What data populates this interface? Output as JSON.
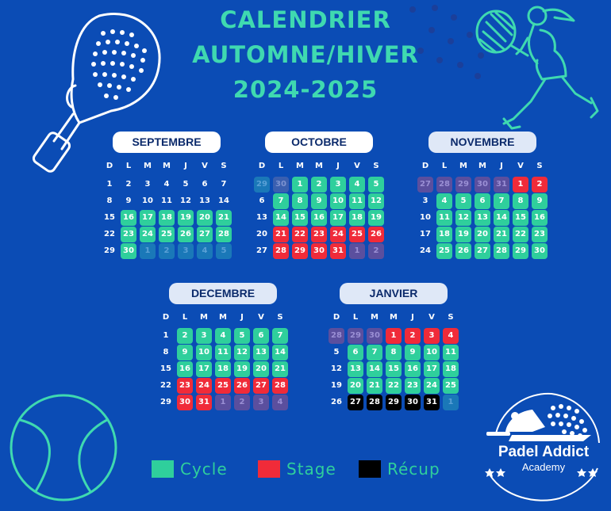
{
  "title": {
    "line1": "CALENDRIER",
    "line2": "AUTOMNE/HIVER",
    "line3": "2024-2025"
  },
  "weekdays": [
    "D",
    "L",
    "M",
    "M",
    "J",
    "V",
    "S"
  ],
  "months": [
    {
      "id": "septembre",
      "label": "SEPTEMBRE",
      "weeks": [
        [
          [
            "1",
            ""
          ],
          [
            "2",
            ""
          ],
          [
            "3",
            ""
          ],
          [
            "4",
            ""
          ],
          [
            "5",
            ""
          ],
          [
            "6",
            ""
          ],
          [
            "7",
            ""
          ]
        ],
        [
          [
            "8",
            ""
          ],
          [
            "9",
            ""
          ],
          [
            "10",
            ""
          ],
          [
            "11",
            ""
          ],
          [
            "12",
            ""
          ],
          [
            "13",
            ""
          ],
          [
            "14",
            ""
          ]
        ],
        [
          [
            "15",
            ""
          ],
          [
            "16",
            "cycle"
          ],
          [
            "17",
            "cycle"
          ],
          [
            "18",
            "cycle"
          ],
          [
            "19",
            "cycle"
          ],
          [
            "20",
            "cycle"
          ],
          [
            "21",
            "cycle"
          ]
        ],
        [
          [
            "22",
            ""
          ],
          [
            "23",
            "cycle"
          ],
          [
            "24",
            "cycle"
          ],
          [
            "25",
            "cycle"
          ],
          [
            "26",
            "cycle"
          ],
          [
            "27",
            "cycle"
          ],
          [
            "28",
            "cycle"
          ]
        ],
        [
          [
            "29",
            ""
          ],
          [
            "30",
            "cycle"
          ],
          [
            "1",
            "faded-c"
          ],
          [
            "2",
            "faded-c"
          ],
          [
            "3",
            "faded-c"
          ],
          [
            "4",
            "faded-c"
          ],
          [
            "5",
            "faded-c"
          ]
        ]
      ]
    },
    {
      "id": "octobre",
      "label": "OCTOBRE",
      "weeks": [
        [
          [
            "29",
            "faded-c"
          ],
          [
            "30",
            "faded-o"
          ],
          [
            "1",
            "cycle"
          ],
          [
            "2",
            "cycle"
          ],
          [
            "3",
            "cycle"
          ],
          [
            "4",
            "cycle"
          ],
          [
            "5",
            "cycle"
          ]
        ],
        [
          [
            "6",
            ""
          ],
          [
            "7",
            "cycle"
          ],
          [
            "8",
            "cycle"
          ],
          [
            "9",
            "cycle"
          ],
          [
            "10",
            "cycle"
          ],
          [
            "11",
            "cycle"
          ],
          [
            "12",
            "cycle"
          ]
        ],
        [
          [
            "13",
            ""
          ],
          [
            "14",
            "cycle"
          ],
          [
            "15",
            "cycle"
          ],
          [
            "16",
            "cycle"
          ],
          [
            "17",
            "cycle"
          ],
          [
            "18",
            "cycle"
          ],
          [
            "19",
            "cycle"
          ]
        ],
        [
          [
            "20",
            ""
          ],
          [
            "21",
            "stage"
          ],
          [
            "22",
            "stage"
          ],
          [
            "23",
            "stage"
          ],
          [
            "24",
            "stage"
          ],
          [
            "25",
            "stage"
          ],
          [
            "26",
            "stage"
          ]
        ],
        [
          [
            "27",
            ""
          ],
          [
            "28",
            "stage"
          ],
          [
            "29",
            "stage"
          ],
          [
            "30",
            "stage"
          ],
          [
            "31",
            "stage"
          ],
          [
            "1",
            "faded-p"
          ],
          [
            "2",
            "faded-p"
          ]
        ]
      ]
    },
    {
      "id": "novembre",
      "label": "NOVEMBRE",
      "weeks": [
        [
          [
            "27",
            "faded-p"
          ],
          [
            "28",
            "faded-p"
          ],
          [
            "29",
            "faded-p"
          ],
          [
            "30",
            "faded-p"
          ],
          [
            "31",
            "faded-p"
          ],
          [
            "1",
            "stage"
          ],
          [
            "2",
            "stage"
          ]
        ],
        [
          [
            "3",
            ""
          ],
          [
            "4",
            "cycle"
          ],
          [
            "5",
            "cycle"
          ],
          [
            "6",
            "cycle"
          ],
          [
            "7",
            "cycle"
          ],
          [
            "8",
            "cycle"
          ],
          [
            "9",
            "cycle"
          ]
        ],
        [
          [
            "10",
            ""
          ],
          [
            "11",
            "cycle"
          ],
          [
            "12",
            "cycle"
          ],
          [
            "13",
            "cycle"
          ],
          [
            "14",
            "cycle"
          ],
          [
            "15",
            "cycle"
          ],
          [
            "16",
            "cycle"
          ]
        ],
        [
          [
            "17",
            ""
          ],
          [
            "18",
            "cycle"
          ],
          [
            "19",
            "cycle"
          ],
          [
            "20",
            "cycle"
          ],
          [
            "21",
            "cycle"
          ],
          [
            "22",
            "cycle"
          ],
          [
            "23",
            "cycle"
          ]
        ],
        [
          [
            "24",
            ""
          ],
          [
            "25",
            "cycle"
          ],
          [
            "26",
            "cycle"
          ],
          [
            "27",
            "cycle"
          ],
          [
            "28",
            "cycle"
          ],
          [
            "29",
            "cycle"
          ],
          [
            "30",
            "cycle"
          ]
        ]
      ]
    },
    {
      "id": "decembre",
      "label": "DECEMBRE",
      "weeks": [
        [
          [
            "1",
            ""
          ],
          [
            "2",
            "cycle"
          ],
          [
            "3",
            "cycle"
          ],
          [
            "4",
            "cycle"
          ],
          [
            "5",
            "cycle"
          ],
          [
            "6",
            "cycle"
          ],
          [
            "7",
            "cycle"
          ]
        ],
        [
          [
            "8",
            ""
          ],
          [
            "9",
            "cycle"
          ],
          [
            "10",
            "cycle"
          ],
          [
            "11",
            "cycle"
          ],
          [
            "12",
            "cycle"
          ],
          [
            "13",
            "cycle"
          ],
          [
            "14",
            "cycle"
          ]
        ],
        [
          [
            "15",
            ""
          ],
          [
            "16",
            "cycle"
          ],
          [
            "17",
            "cycle"
          ],
          [
            "18",
            "cycle"
          ],
          [
            "19",
            "cycle"
          ],
          [
            "20",
            "cycle"
          ],
          [
            "21",
            "cycle"
          ]
        ],
        [
          [
            "22",
            ""
          ],
          [
            "23",
            "stage"
          ],
          [
            "24",
            "stage"
          ],
          [
            "25",
            "stage"
          ],
          [
            "26",
            "stage"
          ],
          [
            "27",
            "stage"
          ],
          [
            "28",
            "stage"
          ]
        ],
        [
          [
            "29",
            ""
          ],
          [
            "30",
            "stage"
          ],
          [
            "31",
            "stage"
          ],
          [
            "1",
            "faded-p"
          ],
          [
            "2",
            "faded-p"
          ],
          [
            "3",
            "faded-p"
          ],
          [
            "4",
            "faded-p"
          ]
        ]
      ]
    },
    {
      "id": "janvier",
      "label": "JANVIER",
      "weeks": [
        [
          [
            "28",
            "faded-p"
          ],
          [
            "29",
            "faded-p"
          ],
          [
            "30",
            "faded-p"
          ],
          [
            "1",
            "stage"
          ],
          [
            "2",
            "stage"
          ],
          [
            "3",
            "stage"
          ],
          [
            "4",
            "stage"
          ]
        ],
        [
          [
            "5",
            ""
          ],
          [
            "6",
            "cycle"
          ],
          [
            "7",
            "cycle"
          ],
          [
            "8",
            "cycle"
          ],
          [
            "9",
            "cycle"
          ],
          [
            "10",
            "cycle"
          ],
          [
            "11",
            "cycle"
          ]
        ],
        [
          [
            "12",
            ""
          ],
          [
            "13",
            "cycle"
          ],
          [
            "14",
            "cycle"
          ],
          [
            "15",
            "cycle"
          ],
          [
            "16",
            "cycle"
          ],
          [
            "17",
            "cycle"
          ],
          [
            "18",
            "cycle"
          ]
        ],
        [
          [
            "19",
            ""
          ],
          [
            "20",
            "cycle"
          ],
          [
            "21",
            "cycle"
          ],
          [
            "22",
            "cycle"
          ],
          [
            "23",
            "cycle"
          ],
          [
            "24",
            "cycle"
          ],
          [
            "25",
            "cycle"
          ]
        ],
        [
          [
            "26",
            ""
          ],
          [
            "27",
            "recup"
          ],
          [
            "28",
            "recup"
          ],
          [
            "29",
            "recup"
          ],
          [
            "30",
            "recup"
          ],
          [
            "31",
            "recup"
          ],
          [
            "1",
            "faded-c"
          ]
        ]
      ]
    }
  ],
  "legend": [
    {
      "label": "Cycle",
      "color": "#2fcf9c"
    },
    {
      "label": "Stage",
      "color": "#f02b39"
    },
    {
      "label": "Récup",
      "color": "#000000"
    }
  ],
  "logo": {
    "name": "Padel Addict",
    "sub": "Academy"
  },
  "colors": {
    "background": "#0b4cb5",
    "accent": "#3fd9b0",
    "cycle": "#2fcf9c",
    "stage": "#f02b39",
    "recup": "#000000"
  }
}
